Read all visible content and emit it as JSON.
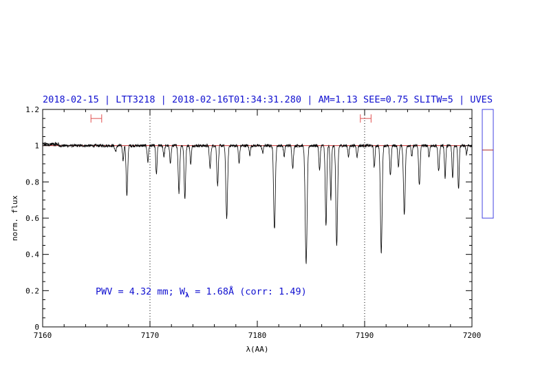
{
  "chart_data": {
    "type": "line",
    "title": "2018-02-15 | LTT3218 | 2018-02-16T01:34:31.280 | AM=1.13  SEE=0.75  SLITW=5 | UVES",
    "xlabel": "λ(AA)",
    "ylabel": "norm. flux",
    "xlim": [
      7160,
      7200
    ],
    "ylim": [
      0,
      1.2
    ],
    "x_ticks": [
      7160,
      7170,
      7180,
      7190,
      7200
    ],
    "x_tick_labels": [
      "7160",
      "7170",
      "7180",
      "7190",
      "7200"
    ],
    "y_ticks": [
      0,
      0.2,
      0.4,
      0.6,
      0.8,
      1,
      1.2
    ],
    "y_tick_labels": [
      "0",
      "0.2",
      "0.4",
      "0.6",
      "0.8",
      "1",
      "1.2"
    ],
    "grid": false,
    "vertical_dotted_lines": [
      7170,
      7190
    ],
    "continuum_level": 1.0,
    "continuum_windows": [
      [
        7164.5,
        7165.5
      ],
      [
        7189.6,
        7190.6
      ]
    ],
    "continuum_window_y": 1.15,
    "spectrum": {
      "baseline": 1.0,
      "noise": 0.008,
      "absorption_lines": [
        {
          "x": 7166.8,
          "depth": 0.03,
          "width": 0.08
        },
        {
          "x": 7167.5,
          "depth": 0.08,
          "width": 0.06
        },
        {
          "x": 7167.85,
          "depth": 0.28,
          "width": 0.07
        },
        {
          "x": 7169.8,
          "depth": 0.09,
          "width": 0.06
        },
        {
          "x": 7170.6,
          "depth": 0.16,
          "width": 0.06
        },
        {
          "x": 7171.3,
          "depth": 0.06,
          "width": 0.06
        },
        {
          "x": 7171.9,
          "depth": 0.09,
          "width": 0.07
        },
        {
          "x": 7172.7,
          "depth": 0.26,
          "width": 0.07
        },
        {
          "x": 7173.25,
          "depth": 0.29,
          "width": 0.07
        },
        {
          "x": 7173.8,
          "depth": 0.1,
          "width": 0.06
        },
        {
          "x": 7175.6,
          "depth": 0.12,
          "width": 0.07
        },
        {
          "x": 7176.3,
          "depth": 0.22,
          "width": 0.07
        },
        {
          "x": 7177.15,
          "depth": 0.4,
          "width": 0.08
        },
        {
          "x": 7178.3,
          "depth": 0.1,
          "width": 0.06
        },
        {
          "x": 7179.3,
          "depth": 0.05,
          "width": 0.06
        },
        {
          "x": 7180.5,
          "depth": 0.04,
          "width": 0.06
        },
        {
          "x": 7181.6,
          "depth": 0.46,
          "width": 0.08
        },
        {
          "x": 7182.5,
          "depth": 0.06,
          "width": 0.06
        },
        {
          "x": 7183.3,
          "depth": 0.12,
          "width": 0.07
        },
        {
          "x": 7184.55,
          "depth": 0.65,
          "width": 0.09
        },
        {
          "x": 7185.8,
          "depth": 0.14,
          "width": 0.06
        },
        {
          "x": 7186.4,
          "depth": 0.44,
          "width": 0.07
        },
        {
          "x": 7186.85,
          "depth": 0.3,
          "width": 0.06
        },
        {
          "x": 7187.4,
          "depth": 0.55,
          "width": 0.08
        },
        {
          "x": 7188.5,
          "depth": 0.06,
          "width": 0.06
        },
        {
          "x": 7189.3,
          "depth": 0.06,
          "width": 0.06
        },
        {
          "x": 7190.9,
          "depth": 0.12,
          "width": 0.06
        },
        {
          "x": 7191.55,
          "depth": 0.59,
          "width": 0.08
        },
        {
          "x": 7192.4,
          "depth": 0.16,
          "width": 0.07
        },
        {
          "x": 7193.15,
          "depth": 0.12,
          "width": 0.06
        },
        {
          "x": 7193.7,
          "depth": 0.38,
          "width": 0.08
        },
        {
          "x": 7194.4,
          "depth": 0.06,
          "width": 0.06
        },
        {
          "x": 7195.1,
          "depth": 0.22,
          "width": 0.07
        },
        {
          "x": 7196.0,
          "depth": 0.06,
          "width": 0.06
        },
        {
          "x": 7196.9,
          "depth": 0.14,
          "width": 0.07
        },
        {
          "x": 7197.5,
          "depth": 0.18,
          "width": 0.06
        },
        {
          "x": 7198.2,
          "depth": 0.18,
          "width": 0.06
        },
        {
          "x": 7198.75,
          "depth": 0.24,
          "width": 0.06
        },
        {
          "x": 7199.5,
          "depth": 0.05,
          "width": 0.06
        }
      ]
    },
    "side_indicator_value": 0.5
  },
  "annotation": {
    "prefix": "PWV = 4.32 mm; W",
    "subscript": "λ",
    "suffix": " = 1.68Å (corr: 1.49)"
  },
  "colors": {
    "title": "#1010d0",
    "annotation": "#1010d0",
    "spectrum": "#000000",
    "continuum": "#cc3333",
    "windows": "#e05050",
    "side_box": "#4040e0",
    "side_marker": "#aa2222"
  }
}
